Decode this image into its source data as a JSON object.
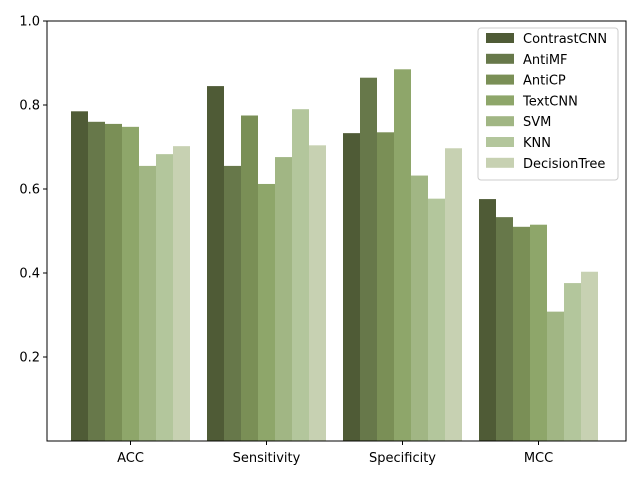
{
  "chart_data": {
    "type": "bar",
    "categories": [
      "ACC",
      "Sensitivity",
      "Specificity",
      "MCC"
    ],
    "series": [
      {
        "name": "ContrastCNN",
        "color": "#4f5b36",
        "values": [
          0.785,
          0.845,
          0.733,
          0.576
        ]
      },
      {
        "name": "AntiMF",
        "color": "#67784a",
        "values": [
          0.76,
          0.655,
          0.865,
          0.533
        ]
      },
      {
        "name": "AntiCP",
        "color": "#7a8f56",
        "values": [
          0.755,
          0.775,
          0.735,
          0.51
        ]
      },
      {
        "name": "TextCNN",
        "color": "#8ea66a",
        "values": [
          0.748,
          0.612,
          0.885,
          0.515
        ]
      },
      {
        "name": "SVM",
        "color": "#a1b684",
        "values": [
          0.655,
          0.676,
          0.632,
          0.308
        ]
      },
      {
        "name": "KNN",
        "color": "#b3c69c",
        "values": [
          0.683,
          0.79,
          0.577,
          0.376
        ]
      },
      {
        "name": "DecisionTree",
        "color": "#c7d1b2",
        "values": [
          0.702,
          0.704,
          0.697,
          0.403
        ]
      }
    ],
    "yticks": [
      "0.2",
      "0.4",
      "0.6",
      "0.8",
      "1.0"
    ],
    "ylim": [
      0,
      1.0
    ],
    "legend": "top-right",
    "grid": false
  }
}
